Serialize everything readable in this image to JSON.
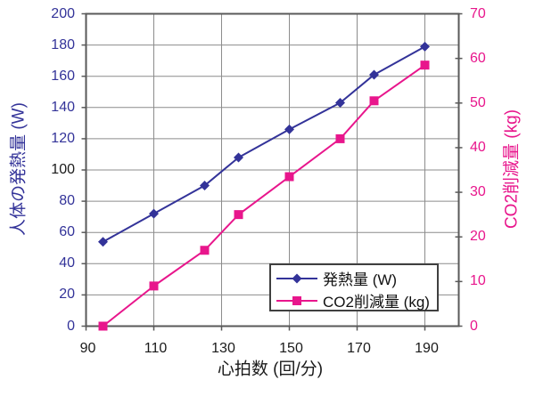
{
  "chart_data": {
    "type": "line",
    "x": [
      95,
      110,
      125,
      135,
      150,
      165,
      175,
      190
    ],
    "series": [
      {
        "name": "発熱量 (W)",
        "axis": "left",
        "color": "#333399",
        "marker": "diamond",
        "values": [
          54,
          72,
          90,
          108,
          126,
          143,
          161,
          179
        ]
      },
      {
        "name": "CO2削減量 (kg)",
        "axis": "right",
        "color": "#E8168C",
        "marker": "square",
        "values": [
          0,
          9,
          17,
          25,
          33.5,
          42,
          50.5,
          58.5
        ]
      }
    ],
    "title": "",
    "xlabel": "心拍数 (回/分)",
    "ylabel_left": "人体の発熱量 (W)",
    "ylabel_right": "CO2削減量 (kg)",
    "x_range": [
      90,
      200
    ],
    "x_ticks": [
      90,
      110,
      130,
      150,
      170,
      190
    ],
    "y_left": {
      "min": 0,
      "max": 200,
      "step": 20,
      "ticks": [
        0,
        20,
        40,
        60,
        80,
        100,
        120,
        140,
        160,
        180,
        200
      ],
      "label_color": "#333399",
      "black_tick": 100
    },
    "y_right": {
      "min": 0,
      "max": 70,
      "step": 10,
      "ticks": [
        0,
        10,
        20,
        30,
        40,
        50,
        60,
        70
      ],
      "label_color": "#E8168C"
    },
    "grid": true,
    "grid_color": "#8C8C8C",
    "border_color": "#595959",
    "x_label_color": "#1A1A1A",
    "legend_position": "inside-bottom-right"
  }
}
